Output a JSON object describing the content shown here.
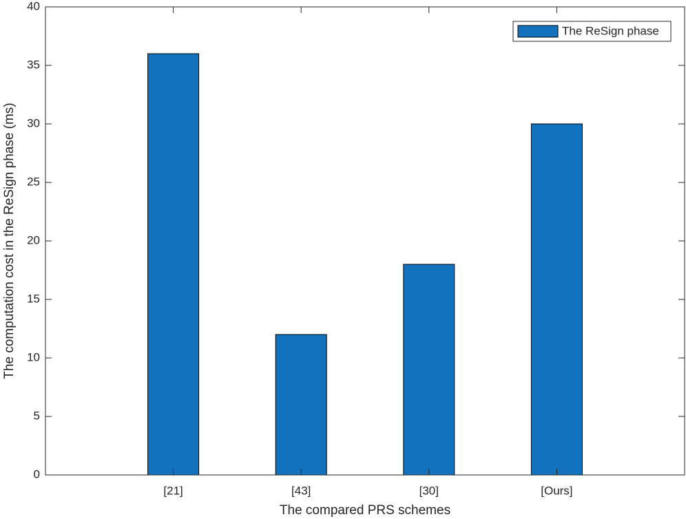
{
  "chart_data": {
    "type": "bar",
    "x_label": "The compared PRS schemes",
    "y_label": "The computation cost in the ReSign phase (ms)",
    "categories": [
      "[21]",
      "[43]",
      "[30]",
      "[Ours]"
    ],
    "series": [
      {
        "name": "The ReSign phase",
        "color": "#1272bd",
        "values": [
          36,
          12,
          18,
          30
        ]
      }
    ],
    "ylim": [
      0,
      40
    ],
    "yticks": [
      0,
      5,
      10,
      15,
      20,
      25,
      30,
      35,
      40
    ],
    "legend": "upper right"
  }
}
